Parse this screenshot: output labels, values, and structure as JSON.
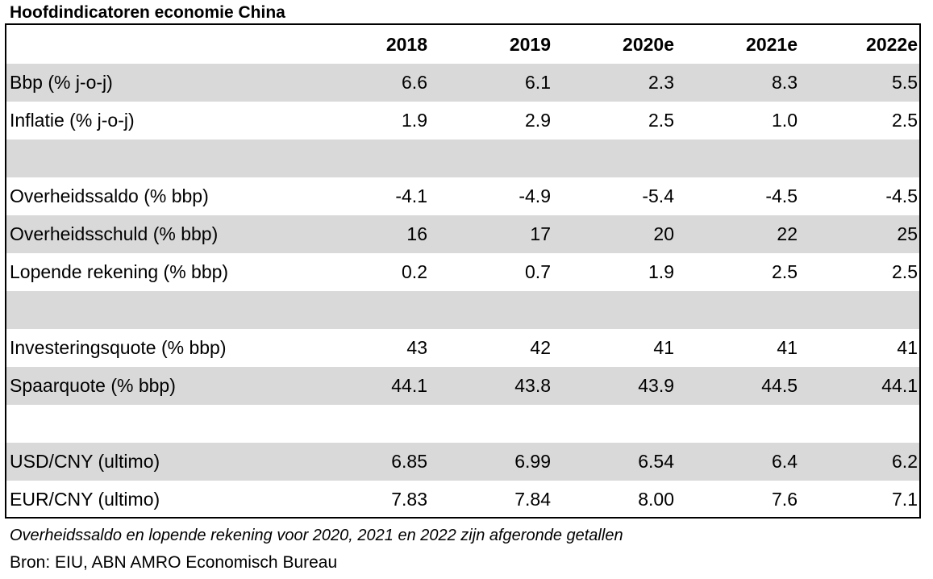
{
  "chart_data": {
    "type": "table",
    "title": "Hoofdindicatoren economie China",
    "columns": [
      "2018",
      "2019",
      "2020e",
      "2021e",
      "2022e"
    ],
    "rows": [
      {
        "label": "Bbp (% j-o-j)",
        "values": [
          "6.6",
          "6.1",
          "2.3",
          "8.3",
          "5.5"
        ],
        "shade": true
      },
      {
        "label": "Inflatie (% j-o-j)",
        "values": [
          "1.9",
          "2.9",
          "2.5",
          "1.0",
          "2.5"
        ],
        "shade": false
      },
      {
        "label": "",
        "values": [
          "",
          "",
          "",
          "",
          ""
        ],
        "shade": true
      },
      {
        "label": "Overheidssaldo (% bbp)",
        "values": [
          "-4.1",
          "-4.9",
          "-5.4",
          "-4.5",
          "-4.5"
        ],
        "shade": false
      },
      {
        "label": "Overheidsschuld (% bbp)",
        "values": [
          "16",
          "17",
          "20",
          "22",
          "25"
        ],
        "shade": true
      },
      {
        "label": "Lopende rekening (% bbp)",
        "values": [
          "0.2",
          "0.7",
          "1.9",
          "2.5",
          "2.5"
        ],
        "shade": false
      },
      {
        "label": "",
        "values": [
          "",
          "",
          "",
          "",
          ""
        ],
        "shade": true
      },
      {
        "label": "Investeringsquote (% bbp)",
        "values": [
          "43",
          "42",
          "41",
          "41",
          "41"
        ],
        "shade": false
      },
      {
        "label": "Spaarquote (% bbp)",
        "values": [
          "44.1",
          "43.8",
          "43.9",
          "44.5",
          "44.1"
        ],
        "shade": true
      },
      {
        "label": "",
        "values": [
          "",
          "",
          "",
          "",
          ""
        ],
        "shade": false
      },
      {
        "label": "USD/CNY (ultimo)",
        "values": [
          "6.85",
          "6.99",
          "6.54",
          "6.4",
          "6.2"
        ],
        "shade": true
      },
      {
        "label": "EUR/CNY (ultimo)",
        "values": [
          "7.83",
          "7.84",
          "8.00",
          "7.6",
          "7.1"
        ],
        "shade": false
      }
    ],
    "note": "Overheidssaldo en lopende rekening voor 2020, 2021 en 2022 zijn afgeronde getallen",
    "source": "Bron: EIU, ABN AMRO Economisch Bureau"
  },
  "colors": {
    "shade": "#d9d9d9",
    "border": "#000000"
  }
}
